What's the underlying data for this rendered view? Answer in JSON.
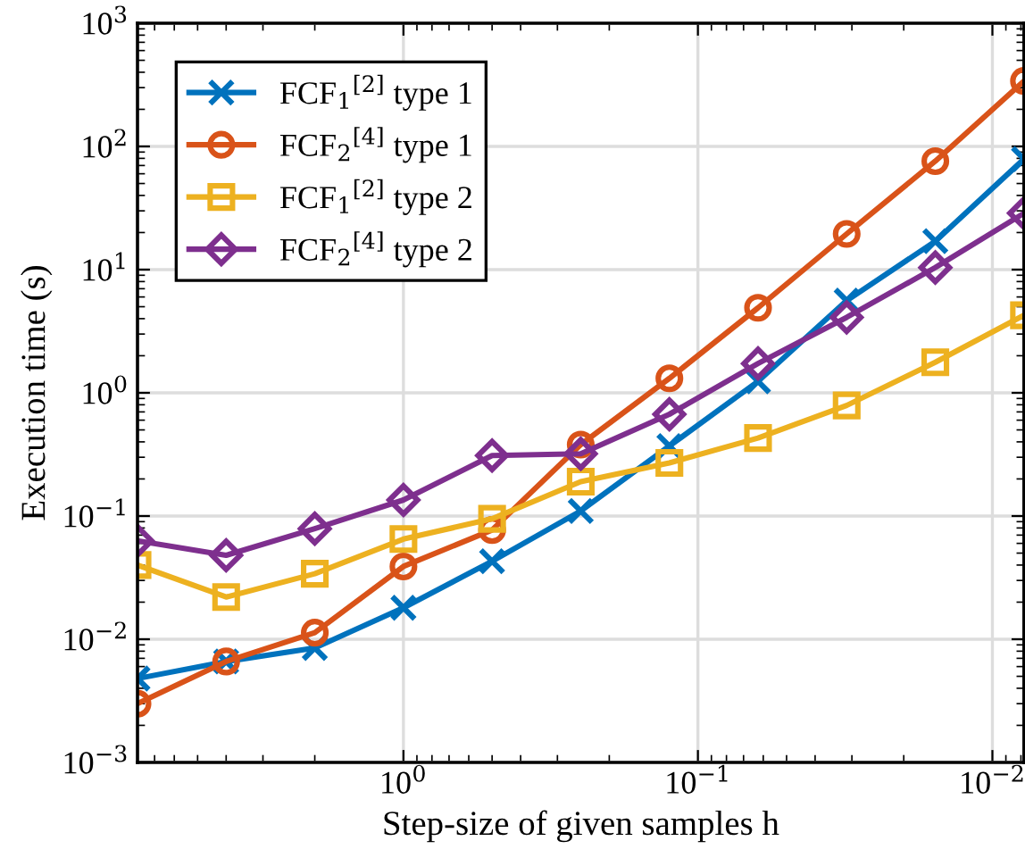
{
  "chart_data": {
    "type": "line",
    "xlabel": "Step-size of given samples h",
    "ylabel": "Execution time (s)",
    "x": [
      8,
      4,
      2,
      1,
      0.5,
      0.25,
      0.125,
      0.0625,
      0.03125,
      0.015625,
      0.0078125
    ],
    "series": [
      {
        "name": "FCF$_{1}$$^{[2]}$ type 1",
        "color": "#0072bd",
        "marker": "cross",
        "values": [
          0.0048,
          0.0066,
          0.0085,
          0.018,
          0.043,
          0.11,
          0.37,
          1.24,
          5.6,
          17,
          79
        ]
      },
      {
        "name": "FCF$_{2}$$^{[4]}$ type 1",
        "color": "#d95319",
        "marker": "circle",
        "values": [
          0.003,
          0.0066,
          0.0113,
          0.039,
          0.077,
          0.38,
          1.31,
          4.9,
          19.5,
          76,
          340
        ]
      },
      {
        "name": "FCF$_{1}$$^{[2]}$ type 2",
        "color": "#edb120",
        "marker": "square",
        "values": [
          0.04,
          0.022,
          0.034,
          0.065,
          0.095,
          0.19,
          0.27,
          0.43,
          0.79,
          1.77,
          4.26
        ]
      },
      {
        "name": "FCF$_{2}$$^{[4]}$ type 2",
        "color": "#7e2f8e",
        "marker": "diamond",
        "values": [
          0.063,
          0.048,
          0.079,
          0.135,
          0.31,
          0.32,
          0.67,
          1.73,
          4.1,
          10.4,
          28.7
        ]
      }
    ],
    "log": "xy",
    "xlim": [
      8,
      0.0078125
    ],
    "ylim": [
      0.001,
      1000
    ],
    "xticks": [
      {
        "value": 1,
        "label": "10$^{0}$"
      },
      {
        "value": 0.1,
        "label": "10$^{−1}$"
      },
      {
        "value": 0.01,
        "label": "10$^{−2}$"
      }
    ],
    "yticks": [
      {
        "value": 0.001,
        "label": "10$^{−3}$"
      },
      {
        "value": 0.01,
        "label": "10$^{−2}$"
      },
      {
        "value": 0.1,
        "label": "10$^{−1}$"
      },
      {
        "value": 1,
        "label": "10$^{0}$"
      },
      {
        "value": 10,
        "label": "10$^{1}$"
      },
      {
        "value": 100,
        "label": "10$^{2}$"
      },
      {
        "value": 1000,
        "label": "10$^{3}$"
      }
    ],
    "grid": true,
    "legend": "top left",
    "line_style": "solid"
  }
}
